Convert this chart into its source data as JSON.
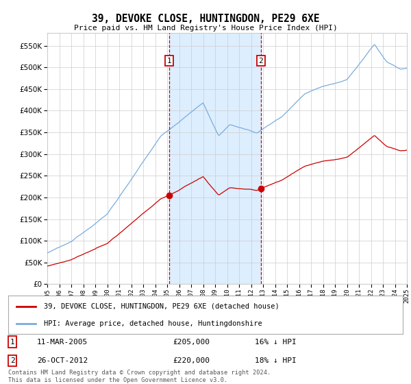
{
  "title": "39, DEVOKE CLOSE, HUNTINGDON, PE29 6XE",
  "subtitle": "Price paid vs. HM Land Registry's House Price Index (HPI)",
  "ylim": [
    0,
    580000
  ],
  "yticks": [
    0,
    50000,
    100000,
    150000,
    200000,
    250000,
    300000,
    350000,
    400000,
    450000,
    500000,
    550000
  ],
  "x_start_year": 1995,
  "x_end_year": 2025,
  "sale1_date": "11-MAR-2005",
  "sale1_price": 205000,
  "sale1_label": "1",
  "sale1_pct": "16%",
  "sale2_date": "26-OCT-2012",
  "sale2_price": 220000,
  "sale2_label": "2",
  "sale2_pct": "18%",
  "line1_label": "39, DEVOKE CLOSE, HUNTINGDON, PE29 6XE (detached house)",
  "line2_label": "HPI: Average price, detached house, Huntingdonshire",
  "footer": "Contains HM Land Registry data © Crown copyright and database right 2024.\nThis data is licensed under the Open Government Licence v3.0.",
  "price_line_color": "#cc0000",
  "hpi_line_color": "#7aacdc",
  "shaded_region_color": "#ddeeff",
  "marker1_x": 2005.19,
  "marker2_x": 2012.82,
  "background_color": "#ffffff",
  "grid_color": "#cccccc"
}
